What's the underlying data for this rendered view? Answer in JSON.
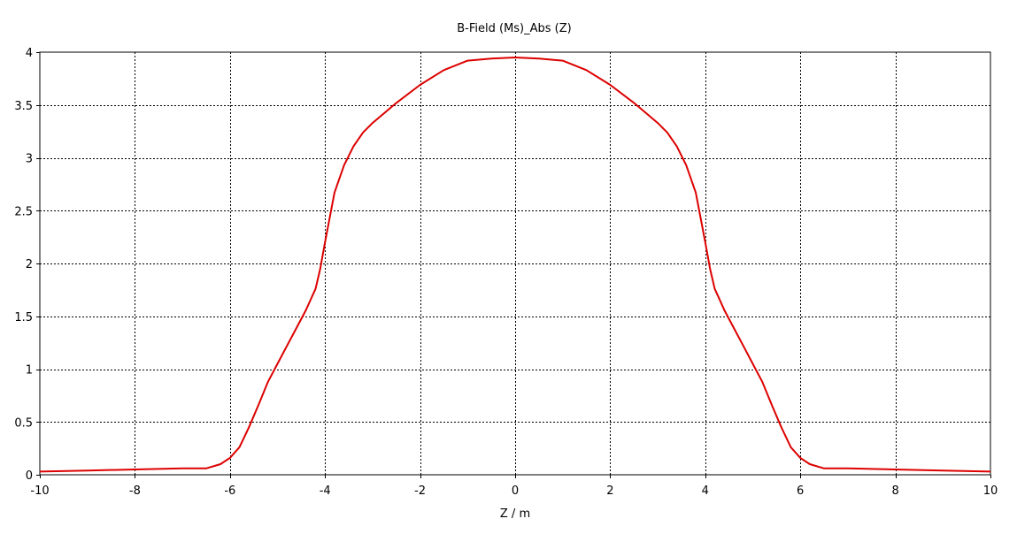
{
  "chart_data": {
    "type": "line",
    "title": "B-Field (Ms)_Abs (Z)",
    "xlabel": "Z / m",
    "ylabel": "",
    "xlim": [
      -10,
      10
    ],
    "ylim": [
      0,
      4
    ],
    "xticks": [
      -10,
      -8,
      -6,
      -4,
      -2,
      0,
      2,
      4,
      6,
      8,
      10
    ],
    "yticks": [
      0,
      0.5,
      1,
      1.5,
      2,
      2.5,
      3,
      3.5,
      4
    ],
    "grid": true,
    "grid_style": "dotted",
    "series": [
      {
        "color": "#dd0000",
        "x": [
          -10,
          -9,
          -8,
          -7,
          -6.5,
          -6.2,
          -6.0,
          -5.8,
          -5.6,
          -5.4,
          -5.2,
          -5.0,
          -4.8,
          -4.6,
          -4.4,
          -4.3,
          -4.2,
          -4.1,
          -4.0,
          -3.8,
          -3.6,
          -3.4,
          -3.2,
          -3.0,
          -2.5,
          -2.0,
          -1.5,
          -1.0,
          -0.5,
          0,
          0.5,
          1.0,
          1.5,
          2.0,
          2.5,
          3.0,
          3.2,
          3.4,
          3.6,
          3.8,
          4.0,
          4.1,
          4.2,
          4.3,
          4.4,
          4.6,
          4.8,
          5.0,
          5.2,
          5.4,
          5.6,
          5.8,
          6.0,
          6.2,
          6.5,
          7,
          8,
          9,
          10
        ],
        "y": [
          0.03,
          0.04,
          0.05,
          0.06,
          0.06,
          0.1,
          0.16,
          0.26,
          0.45,
          0.66,
          0.88,
          1.05,
          1.22,
          1.39,
          1.56,
          1.66,
          1.76,
          1.95,
          2.2,
          2.67,
          2.93,
          3.11,
          3.24,
          3.33,
          3.52,
          3.69,
          3.83,
          3.92,
          3.94,
          3.95,
          3.94,
          3.92,
          3.83,
          3.69,
          3.52,
          3.33,
          3.24,
          3.11,
          2.93,
          2.67,
          2.2,
          1.95,
          1.76,
          1.66,
          1.56,
          1.39,
          1.22,
          1.05,
          0.88,
          0.66,
          0.45,
          0.26,
          0.16,
          0.1,
          0.06,
          0.06,
          0.05,
          0.04,
          0.03
        ]
      }
    ]
  }
}
